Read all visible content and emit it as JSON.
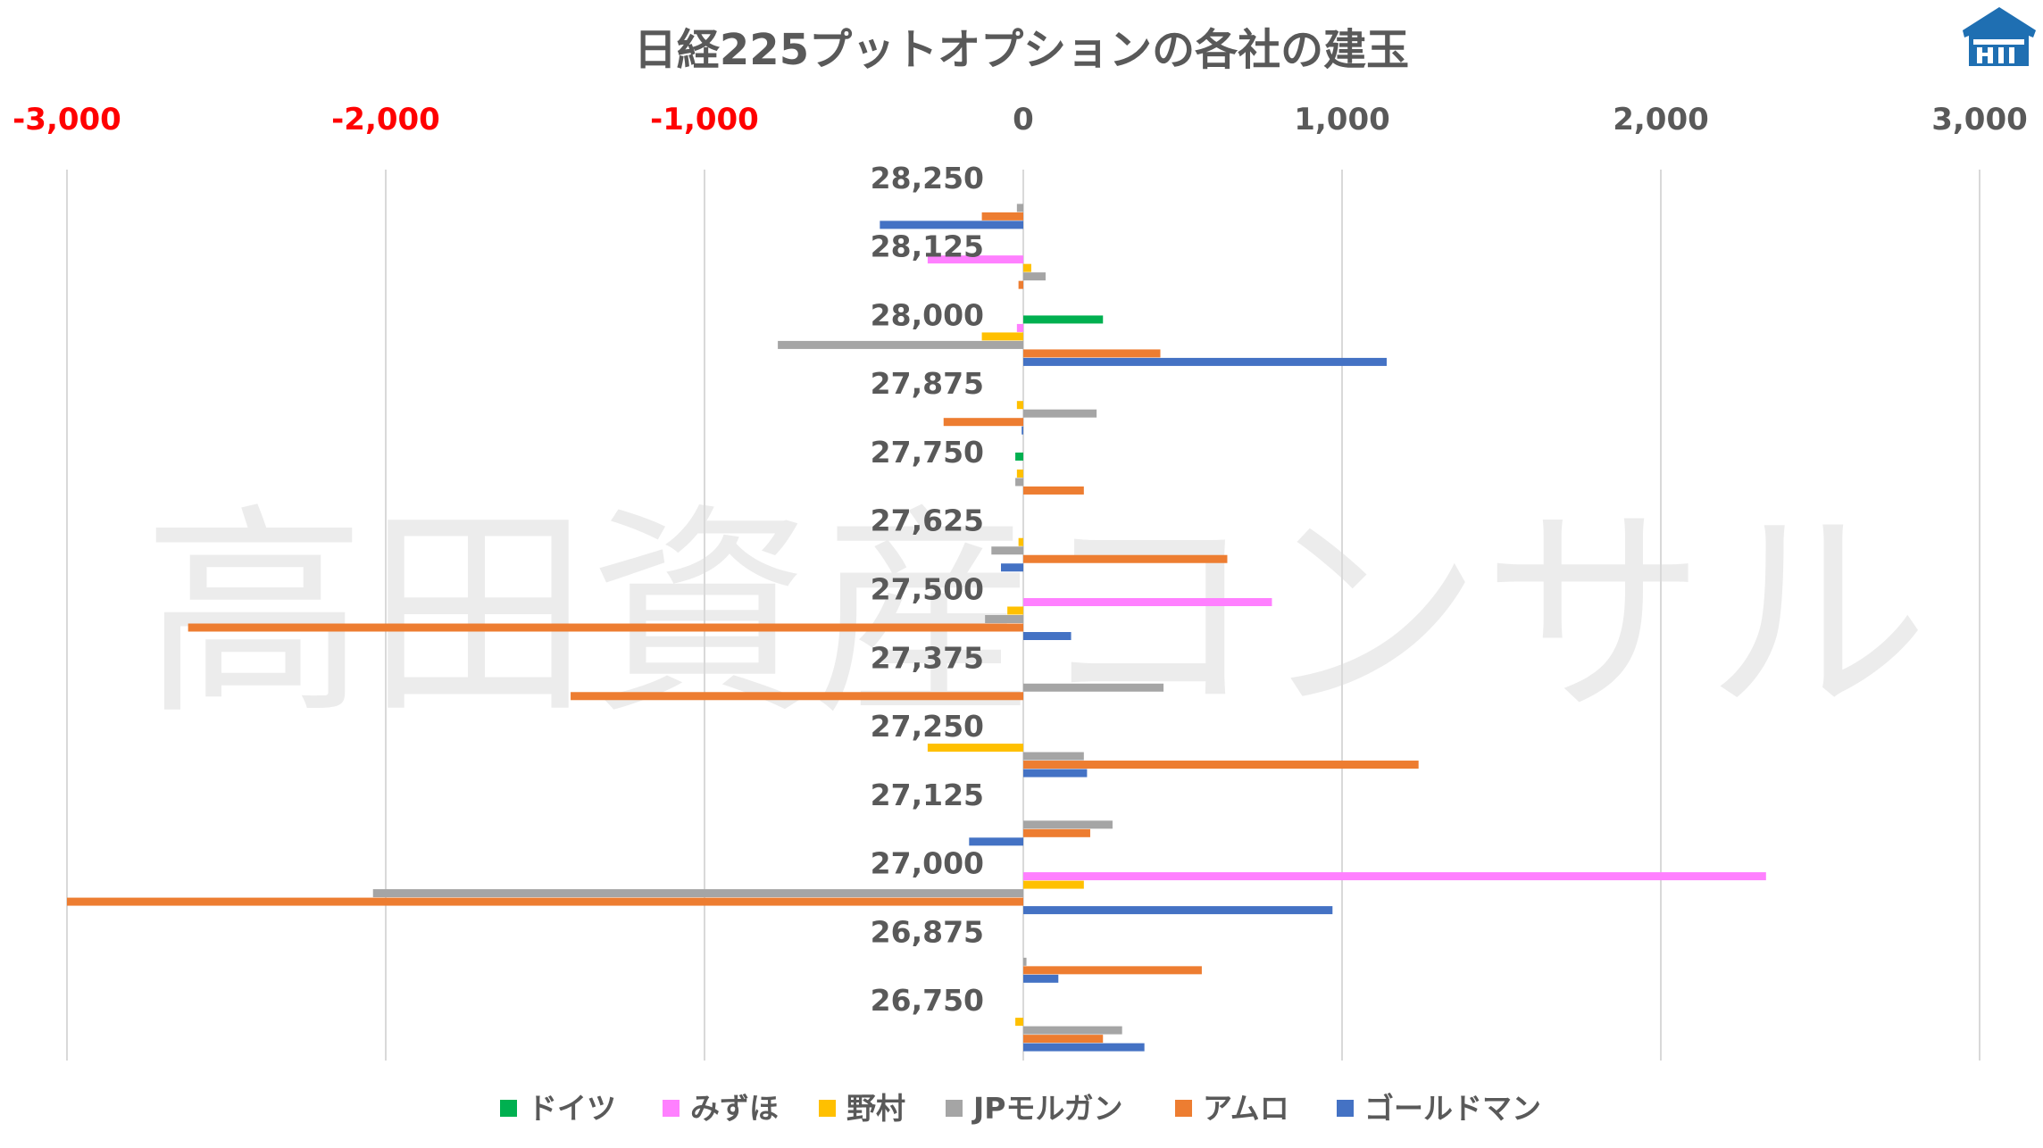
{
  "chart_data": {
    "type": "bar",
    "orientation": "horizontal",
    "title": "日経225プットオプションの各社の建玉",
    "watermark": "高田資産コンサル",
    "xlim": [
      -3000,
      3000
    ],
    "x_ticks": [
      -3000,
      -2000,
      -1000,
      0,
      1000,
      2000,
      3000
    ],
    "x_tick_labels": [
      "-3,000",
      "-2,000",
      "-1,000",
      "0",
      "1,000",
      "2,000",
      "3,000"
    ],
    "negative_tick_color": "#ff0000",
    "positive_tick_color": "#595959",
    "axis_position": "top",
    "grid": true,
    "legend_position": "bottom",
    "categories": [
      "28,250",
      "28,125",
      "28,000",
      "27,875",
      "27,750",
      "27,625",
      "27,500",
      "27,375",
      "27,250",
      "27,125",
      "27,000",
      "26,875",
      "26,750"
    ],
    "series": [
      {
        "name": "ドイツ",
        "color": "#00b050",
        "values": [
          0,
          0,
          250,
          0,
          -25,
          0,
          0,
          0,
          0,
          0,
          0,
          0,
          0
        ]
      },
      {
        "name": "みずほ",
        "color": "#ff80ff",
        "values": [
          0,
          -300,
          -20,
          0,
          0,
          0,
          780,
          0,
          0,
          0,
          2330,
          0,
          0
        ]
      },
      {
        "name": "野村",
        "color": "#ffc000",
        "values": [
          0,
          25,
          -130,
          -20,
          -20,
          -15,
          -50,
          0,
          -300,
          0,
          190,
          0,
          -25
        ]
      },
      {
        "name": "JPモルガン",
        "color": "#a5a5a5",
        "values": [
          -20,
          70,
          -770,
          230,
          -25,
          -100,
          -120,
          440,
          190,
          280,
          -2040,
          10,
          310
        ]
      },
      {
        "name": "アムロ",
        "color": "#ed7d31",
        "values": [
          -130,
          -15,
          430,
          -250,
          190,
          640,
          -2620,
          -1420,
          1240,
          210,
          -3000,
          560,
          250
        ]
      },
      {
        "name": "ゴールドマン",
        "color": "#4472c4",
        "values": [
          -450,
          0,
          1140,
          -5,
          0,
          -70,
          150,
          0,
          200,
          -170,
          970,
          110,
          380
        ]
      }
    ]
  },
  "logo": {
    "name": "takata-logo",
    "color": "#1f6fb2"
  }
}
